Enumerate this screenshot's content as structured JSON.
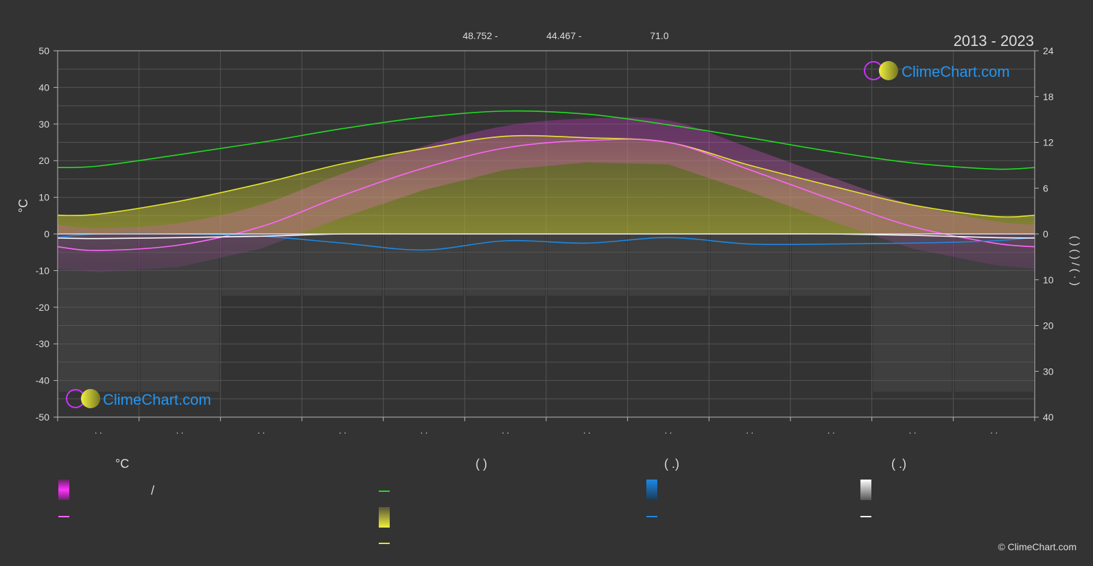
{
  "header": {
    "coords": [
      "48.752 -",
      "44.467 -",
      "71.0"
    ],
    "years": "2013 - 2023"
  },
  "watermark": "ClimeChart.com",
  "copyright": "© ClimeChart.com",
  "colors": {
    "background": "#333333",
    "daylight": "#22dd22",
    "sunshine": "#e6e62e",
    "temp_mean": "#ff66ff",
    "rain": "#1e88e5",
    "snow": "#ffffff",
    "brand_blue": "#2196f3",
    "brand_magenta": "#cc33ff"
  },
  "legend": {
    "temp_header": "°C",
    "sun_header": "(            )",
    "rain_header": "(    .)",
    "snow_header": "(    .)",
    "temp_range_slash": "/"
  },
  "chart_data": {
    "type": "line",
    "left_axis_label": "°C",
    "right_axis_label": "(    )      (    )      /      (  ·  )",
    "left_ylim": [
      -50,
      50
    ],
    "left_ticks": [
      50,
      40,
      30,
      20,
      10,
      0,
      -10,
      -20,
      -30,
      -40,
      -50
    ],
    "right_top_ticks": [
      24,
      18,
      12,
      6,
      0
    ],
    "right_bottom_ticks": [
      0,
      10,
      20,
      30,
      40
    ],
    "month_labels": [
      ". .",
      ". .",
      ". .",
      ". .",
      ". .",
      ". .",
      ". .",
      ". .",
      ". .",
      ". .",
      ". .",
      ". ."
    ],
    "months": [
      1,
      2,
      3,
      4,
      5,
      6,
      7,
      8,
      9,
      10,
      11,
      12
    ],
    "series": [
      {
        "key": "daylight",
        "unit": "hours",
        "values": [
          8.9,
          10.4,
          12.0,
          13.8,
          15.3,
          16.1,
          15.7,
          14.3,
          12.6,
          10.8,
          9.3,
          8.5
        ]
      },
      {
        "key": "sunshine",
        "unit": "hours",
        "values": [
          2.6,
          4.3,
          6.6,
          9.2,
          11.2,
          12.8,
          12.6,
          12.0,
          9.0,
          6.3,
          3.8,
          2.3
        ]
      },
      {
        "key": "temp_mean",
        "unit": "°C",
        "values": [
          -4.5,
          -3.0,
          2.0,
          10.5,
          18.0,
          23.5,
          25.5,
          25.0,
          17.5,
          9.5,
          2.0,
          -2.5
        ]
      },
      {
        "key": "rain",
        "unit": "mm",
        "values": [
          0,
          0,
          0.5,
          2.0,
          3.5,
          1.5,
          2.0,
          0.8,
          2.2,
          2.2,
          2.0,
          1.5
        ]
      },
      {
        "key": "snow",
        "unit": "mm",
        "values": [
          1.0,
          0.8,
          0.5,
          0,
          0,
          0,
          0,
          0,
          0,
          0,
          0.3,
          0.8
        ]
      }
    ]
  }
}
